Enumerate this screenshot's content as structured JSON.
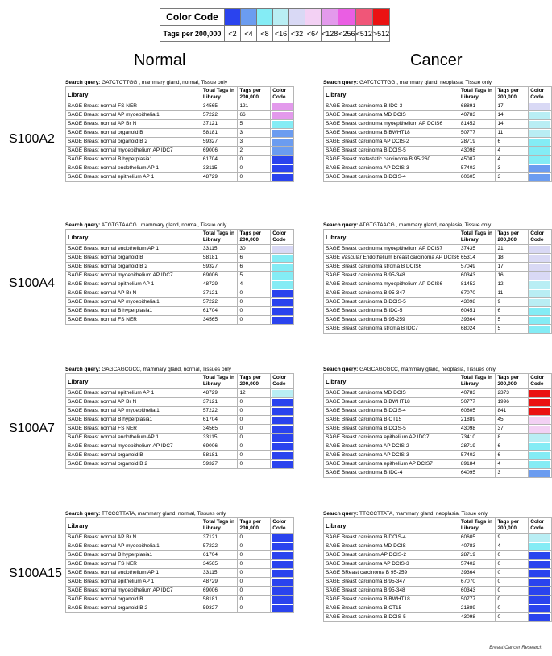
{
  "legend": {
    "title": "Color Code",
    "tags_title": "Tags per 200,000",
    "bins": [
      {
        "label": "<2",
        "color": "#2a43ee"
      },
      {
        "label": "<4",
        "color": "#6b9cf0"
      },
      {
        "label": "<8",
        "color": "#84ecf5"
      },
      {
        "label": "<16",
        "color": "#b9eef4"
      },
      {
        "label": "<32",
        "color": "#d9d9f5"
      },
      {
        "label": "<64",
        "color": "#f3d1f4"
      },
      {
        "label": "<128",
        "color": "#e39aec"
      },
      {
        "label": "<256",
        "color": "#ea5ee3"
      },
      {
        "label": "<512",
        "color": "#f05678"
      },
      {
        "label": ">512",
        "color": "#ea1212"
      }
    ]
  },
  "headings": {
    "normal": "Normal",
    "cancer": "Cancer"
  },
  "genes": [
    "S100A2",
    "S100A4",
    "S100A7",
    "S100A15"
  ],
  "columns": {
    "library": "Library",
    "total": "Total Tags in Library",
    "per": "Tags per 200,000",
    "cc": "Color Code"
  },
  "panels": [
    {
      "query_label": "Search query:",
      "query_text": " GATCTCTTGG , mammary gland, normal, Tissue only",
      "rows": [
        [
          "SAGE Breast normal FS NER",
          "34565",
          "121",
          "<128"
        ],
        [
          "SAGE Breast normal AP myoepithelial1",
          "57222",
          "66",
          "<128"
        ],
        [
          "SAGE Breast normal AP Br N",
          "37121",
          "5",
          "<8"
        ],
        [
          "SAGE Breast normal organoid B",
          "58181",
          "3",
          "<4"
        ],
        [
          "SAGE Breast normal organoid B 2",
          "59327",
          "3",
          "<4"
        ],
        [
          "SAGE Breast normal myoepithelium AP IDC7",
          "69006",
          "2",
          "<4"
        ],
        [
          "SAGE Breast normal B hyperplasia1",
          "61704",
          "0",
          "<2"
        ],
        [
          "SAGE Breast normal endothelium AP 1",
          "33115",
          "0",
          "<2"
        ],
        [
          "SAGE Breast normal epithelium AP 1",
          "48729",
          "0",
          "<2"
        ]
      ]
    },
    {
      "query_label": "Search query:",
      "query_text": " GATCTCTTGG , mammary gland, neoplasia, Tissue only",
      "rows": [
        [
          "SAGE Breast carcinoma B IDC-3",
          "68891",
          "17",
          "<32"
        ],
        [
          "SAGE Breast carcinoma MD DCIS",
          "40783",
          "14",
          "<16"
        ],
        [
          "SAGE Breast carcinoma myoepithelium AP DCIS6",
          "81452",
          "14",
          "<16"
        ],
        [
          "SAGE Breast carcinoma B BWHT18",
          "50777",
          "11",
          "<16"
        ],
        [
          "SAGE Breast carcinoma AP DCIS-2",
          "28719",
          "6",
          "<8"
        ],
        [
          "SAGE Breast carcinoma B DCIS-5",
          "43098",
          "4",
          "<8"
        ],
        [
          "SAGE Breast metastatic carcinoma B 95-260",
          "45087",
          "4",
          "<8"
        ],
        [
          "SAGE Breast carcinoma AP DCIS-3",
          "57402",
          "3",
          "<4"
        ],
        [
          "SAGE Breast carcinoma B DCIS-4",
          "60605",
          "3",
          "<4"
        ]
      ]
    },
    {
      "query_label": "Search query:",
      "query_text": " ATGTGTAACG , mammary gland, normal, Tissue only",
      "rows": [
        [
          "SAGE Breast normal endothelium AP 1",
          "33115",
          "30",
          "<32"
        ],
        [
          "SAGE Breast normal organoid B",
          "58181",
          "6",
          "<8"
        ],
        [
          "SAGE Breast normal organoid B 2",
          "59327",
          "6",
          "<8"
        ],
        [
          "SAGE Breast normal myoepithelium AP IDC7",
          "69006",
          "5",
          "<8"
        ],
        [
          "SAGE Breast normal epithelium AP 1",
          "48729",
          "4",
          "<8"
        ],
        [
          "SAGE Breast normal AP Br N",
          "37121",
          "0",
          "<2"
        ],
        [
          "SAGE Breast normal AP myoepithelial1",
          "57222",
          "0",
          "<2"
        ],
        [
          "SAGE Breast normal B hyperplasia1",
          "61704",
          "0",
          "<2"
        ],
        [
          "SAGE Breast normal FS NER",
          "34565",
          "0",
          "<2"
        ]
      ]
    },
    {
      "query_label": "Search query:",
      "query_text": " ATGTGTAACG , mammary gland, neoplasia, Tissue only",
      "rows": [
        [
          "SAGE Breast carcinoma myoepithelium AP DCIS7",
          "37435",
          "21",
          "<32"
        ],
        [
          "SAGE Vascular Endothelium Breast carcinoma AP DCIS6",
          "65314",
          "18",
          "<32"
        ],
        [
          "SAGE Breast carcinoma stroma B DCIS6",
          "57049",
          "17",
          "<32"
        ],
        [
          "SAGE Breast carcinoma B 95-348",
          "60343",
          "16",
          "<32"
        ],
        [
          "SAGE Breast carcinoma myoepithelium AP DCIS6",
          "81452",
          "12",
          "<16"
        ],
        [
          "SAGE Breast carcinoma B 95-347",
          "67070",
          "11",
          "<16"
        ],
        [
          "SAGE Breast carcinoma B DCIS-5",
          "43098",
          "9",
          "<16"
        ],
        [
          "SAGE Breast carcinoma B IDC-5",
          "60451",
          "6",
          "<8"
        ],
        [
          "SAGE Breast carcinoma B 95-259",
          "39364",
          "5",
          "<8"
        ],
        [
          "SAGE Breast carcinoma stroma B IDC7",
          "68024",
          "5",
          "<8"
        ]
      ]
    },
    {
      "query_label": "Search query:",
      "query_text": " GAGCAGCGCC, mammary gland, normal, Tissues only",
      "rows": [
        [
          "SAGE Breast normal epithelium AP 1",
          "48729",
          "12",
          "<16"
        ],
        [
          "SAGE Breast normal AP Br N",
          "37121",
          "0",
          "<2"
        ],
        [
          "SAGE Breast normal AP myoepithelial1",
          "57222",
          "0",
          "<2"
        ],
        [
          "SAGE Breast normal B hyperplasia1",
          "61704",
          "0",
          "<2"
        ],
        [
          "SAGE Breast normal FS NER",
          "34565",
          "0",
          "<2"
        ],
        [
          "SAGE Breast normal endothelium AP 1",
          "33115",
          "0",
          "<2"
        ],
        [
          "SAGE Breast normal myoepithelium AP IDC7",
          "69006",
          "0",
          "<2"
        ],
        [
          "SAGE Breast normal organoid B",
          "58181",
          "0",
          "<2"
        ],
        [
          "SAGE Breast normal organoid B 2",
          "59327",
          "0",
          "<2"
        ]
      ]
    },
    {
      "query_label": "Search query:",
      "query_text": " GAGCAGCGCC, mammary gland, neoplasia, Tissues only",
      "rows": [
        [
          "SAGE Breast carcinoma MD DCIS",
          "40783",
          "2373",
          ">512"
        ],
        [
          "SAGE Breast carcinoma B BWHT18",
          "50777",
          "1996",
          ">512"
        ],
        [
          "SAGE Breast carcinoma B DCIS-4",
          "60605",
          "841",
          ">512"
        ],
        [
          "SAGE Breast carcinoma B CT15",
          "21889",
          "45",
          "<64"
        ],
        [
          "SAGE Breast carcinoma B DCIS-5",
          "43098",
          "37",
          "<64"
        ],
        [
          "SAGE Breast carcinoma epithelium AP IDC7",
          "73410",
          "8",
          "<16"
        ],
        [
          "SAGE Breast carcinoma AP DCIS-2",
          "28719",
          "6",
          "<8"
        ],
        [
          "SAGE Breast carcinoma AP DCIS-3",
          "57402",
          "6",
          "<8"
        ],
        [
          "SAGE Breast carcinoma epithelium AP DCIS7",
          "89184",
          "4",
          "<8"
        ],
        [
          "SAGE Breast carcinoma B IDC-4",
          "64095",
          "3",
          "<4"
        ]
      ]
    },
    {
      "query_label": "Search query:",
      "query_text": " TTCCCTTATA, mammary gland, normal, Tissues only",
      "rows": [
        [
          "SAGE Breast normal AP Br N",
          "37121",
          "0",
          "<2"
        ],
        [
          "SAGE Breast normal AP myoepithelial1",
          "57222",
          "0",
          "<2"
        ],
        [
          "SAGE Breast normal B hyperplasia1",
          "61704",
          "0",
          "<2"
        ],
        [
          "SAGE Breast normal FS NER",
          "34565",
          "0",
          "<2"
        ],
        [
          "SAGE Breast normal endothelium AP 1",
          "33115",
          "0",
          "<2"
        ],
        [
          "SAGE Breast normal epithelium AP 1",
          "48729",
          "0",
          "<2"
        ],
        [
          "SAGE Breast normal myoepithelium AP IDC7",
          "69006",
          "0",
          "<2"
        ],
        [
          "SAGE Breast normal organoid B",
          "58181",
          "0",
          "<2"
        ],
        [
          "SAGE Breast normal organoid B 2",
          "59327",
          "0",
          "<2"
        ]
      ]
    },
    {
      "query_label": "Search query:",
      "query_text": " TTCCCTTATA, mammary gland, neoplasia, Tissue only",
      "rows": [
        [
          "SAGE Breast carcinoma B DCIS-4",
          "60605",
          "9",
          "<16"
        ],
        [
          "SAGE Breast carcinoma MD DCIS",
          "40783",
          "4",
          "<8"
        ],
        [
          "SAGE Breast carcinom AP DCIS-2",
          "28719",
          "0",
          "<2"
        ],
        [
          "SAGE Breast carcinoma AP DCIS-3",
          "57402",
          "0",
          "<2"
        ],
        [
          "SAGE BReast carcinoma B 95-259",
          "39364",
          "0",
          "<2"
        ],
        [
          "SAGE Breast carcinoma B 95-347",
          "67070",
          "0",
          "<2"
        ],
        [
          "SAGE Breast carcinoma B 95-348",
          "60343",
          "0",
          "<2"
        ],
        [
          "SAGE Breast carcinoma B BWHT18",
          "50777",
          "0",
          "<2"
        ],
        [
          "SAGE Breast carcinoma B CT15",
          "21889",
          "0",
          "<2"
        ],
        [
          "SAGE Breast carcinoma B DCIS-5",
          "43098",
          "0",
          "<2"
        ]
      ]
    }
  ],
  "credit": "Breast Cancer Research"
}
